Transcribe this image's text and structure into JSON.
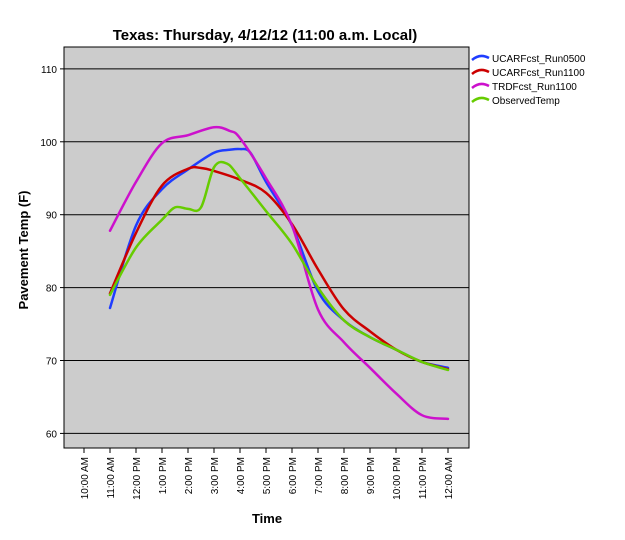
{
  "chart_data": {
    "type": "line",
    "title": "Texas: Thursday, 4/12/12 (11:00 a.m. Local)",
    "xlabel": "Time",
    "ylabel": "Pavement Temp (F)",
    "categories": [
      "10:00 AM",
      "11:00 AM",
      "12:00 PM",
      "1:00 PM",
      "2:00 PM",
      "3:00 PM",
      "4:00 PM",
      "5:00 PM",
      "6:00 PM",
      "7:00 PM",
      "8:00 PM",
      "9:00 PM",
      "10:00 PM",
      "11:00 PM",
      "12:00 AM"
    ],
    "ylim": [
      58,
      113
    ],
    "yticks": [
      60,
      70,
      80,
      90,
      100,
      110
    ],
    "grid": "horizontal",
    "legend_position": "right",
    "series": [
      {
        "name": "UCARFcst_Run0500",
        "color": "#1f3dff",
        "x": [
          1,
          2,
          3,
          4,
          5,
          5.6,
          6,
          6.4,
          7,
          8,
          9,
          10,
          11,
          12,
          13,
          14
        ],
        "y": [
          77.2,
          88.5,
          93.5,
          96.2,
          98.5,
          98.9,
          99,
          98.5,
          94.5,
          88.5,
          79.5,
          75.5,
          73.2,
          71.5,
          69.8,
          69
        ]
      },
      {
        "name": "UCARFcst_Run1100",
        "color": "#cc0000",
        "x": [
          1,
          2,
          3,
          4,
          4.5,
          5,
          6,
          7,
          8,
          9,
          10,
          11,
          12,
          13,
          14
        ],
        "y": [
          79.2,
          87.5,
          94,
          96.3,
          96.4,
          96,
          94.8,
          93,
          88.7,
          82.5,
          77,
          74,
          71.5,
          69.8,
          68.8
        ]
      },
      {
        "name": "TRDFcst_Run1100",
        "color": "#cc11cc",
        "x": [
          1,
          2,
          3,
          4,
          5,
          5.6,
          6,
          7,
          8,
          9,
          10,
          11,
          12,
          13,
          14
        ],
        "y": [
          87.8,
          94.5,
          99.8,
          100.9,
          102,
          101.5,
          100.5,
          95,
          88.5,
          77,
          72.5,
          69,
          65.5,
          62.5,
          62
        ]
      },
      {
        "name": "ObservedTemp",
        "color": "#66cc00",
        "x": [
          1,
          2,
          3,
          3.5,
          4,
          4.5,
          5,
          5.5,
          6,
          7,
          8,
          9,
          10,
          11,
          12,
          13,
          14
        ],
        "y": [
          79,
          85.5,
          89.3,
          91,
          90.8,
          91,
          96.5,
          97,
          95,
          90.5,
          86,
          80,
          75.5,
          73.2,
          71.5,
          69.8,
          68.7
        ]
      }
    ]
  }
}
